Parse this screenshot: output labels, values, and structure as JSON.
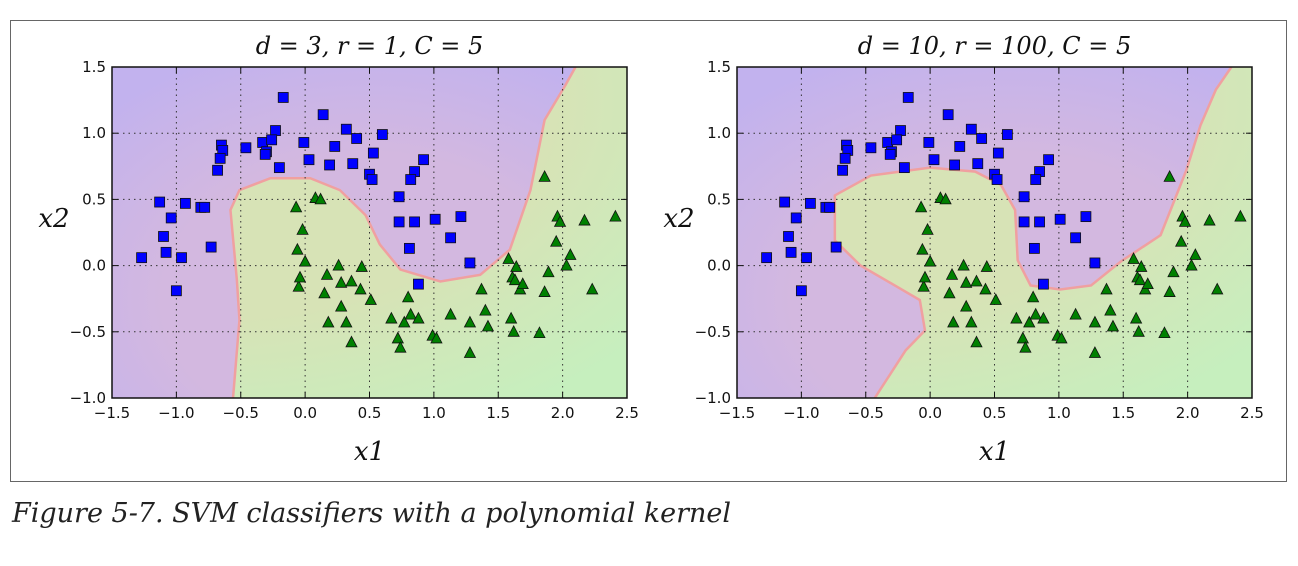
{
  "caption": "Figure 5-7. SVM classifiers with a polynomial kernel",
  "colors": {
    "square": "#0000ff",
    "triangle": "#008000",
    "purple_region": "#d3b8e0",
    "purple_outer": "#c2b2ee",
    "green_region": "#d7e3b6",
    "green_outer": "#c6efbe",
    "boundary": "#f0a0a0"
  },
  "chart_data": [
    {
      "type": "scatter",
      "title": "d = 3, r = 1, C = 5",
      "xlabel": "x1",
      "ylabel": "x2",
      "xlim": [
        -1.5,
        2.5
      ],
      "ylim": [
        -1.0,
        1.5
      ],
      "xticks": [
        "-1.5",
        "-1.0",
        "-0.5",
        "0.0",
        "0.5",
        "1.0",
        "1.5",
        "2.0",
        "2.5"
      ],
      "yticks": [
        "-1.0",
        "-0.5",
        "0.0",
        "0.5",
        "1.0",
        "1.5"
      ],
      "grid": true,
      "decision_boundary": [
        [
          -0.56,
          -1.0
        ],
        [
          -0.51,
          -0.41
        ],
        [
          -0.53,
          -0.11
        ],
        [
          -0.58,
          0.42
        ],
        [
          -0.51,
          0.57
        ],
        [
          -0.27,
          0.66
        ],
        [
          0.04,
          0.66
        ],
        [
          0.27,
          0.57
        ],
        [
          0.47,
          0.38
        ],
        [
          0.58,
          0.16
        ],
        [
          0.74,
          -0.03
        ],
        [
          1.05,
          -0.12
        ],
        [
          1.36,
          -0.07
        ],
        [
          1.59,
          0.12
        ],
        [
          1.75,
          0.57
        ],
        [
          1.86,
          1.1
        ],
        [
          2.02,
          1.36
        ],
        [
          2.1,
          1.5
        ]
      ]
    },
    {
      "type": "scatter",
      "title": "d = 10, r = 100, C = 5",
      "xlabel": "x1",
      "ylabel": "x2",
      "xlim": [
        -1.5,
        2.5
      ],
      "ylim": [
        -1.0,
        1.5
      ],
      "xticks": [
        "-1.5",
        "-1.0",
        "-0.5",
        "0.0",
        "0.5",
        "1.0",
        "1.5",
        "2.0",
        "2.5"
      ],
      "yticks": [
        "-1.0",
        "-0.5",
        "0.0",
        "0.5",
        "1.0",
        "1.5"
      ],
      "grid": true,
      "decision_boundary": [
        [
          -0.43,
          -1.0
        ],
        [
          -0.19,
          -0.64
        ],
        [
          -0.04,
          -0.49
        ],
        [
          -0.08,
          -0.26
        ],
        [
          -0.54,
          0.0
        ],
        [
          -0.74,
          0.19
        ],
        [
          -0.74,
          0.53
        ],
        [
          -0.46,
          0.68
        ],
        [
          0.0,
          0.74
        ],
        [
          0.35,
          0.71
        ],
        [
          0.55,
          0.61
        ],
        [
          0.66,
          0.42
        ],
        [
          0.68,
          0.04
        ],
        [
          0.78,
          -0.15
        ],
        [
          1.01,
          -0.18
        ],
        [
          1.25,
          -0.15
        ],
        [
          1.48,
          0.03
        ],
        [
          1.79,
          0.23
        ],
        [
          1.99,
          0.72
        ],
        [
          2.1,
          1.06
        ],
        [
          2.22,
          1.33
        ],
        [
          2.34,
          1.5
        ]
      ]
    }
  ],
  "points": {
    "squares": [
      [
        -0.17,
        1.27
      ],
      [
        0.14,
        1.14
      ],
      [
        0.32,
        1.03
      ],
      [
        -0.23,
        1.02
      ],
      [
        -0.33,
        0.93
      ],
      [
        -0.26,
        0.95
      ],
      [
        0.4,
        0.96
      ],
      [
        -0.46,
        0.89
      ],
      [
        -0.65,
        0.91
      ],
      [
        -0.3,
        0.86
      ],
      [
        -0.01,
        0.93
      ],
      [
        0.23,
        0.9
      ],
      [
        0.6,
        0.99
      ],
      [
        0.53,
        0.85
      ],
      [
        -0.64,
        0.87
      ],
      [
        -0.66,
        0.81
      ],
      [
        -0.68,
        0.72
      ],
      [
        -0.31,
        0.84
      ],
      [
        -0.2,
        0.74
      ],
      [
        0.03,
        0.8
      ],
      [
        0.19,
        0.76
      ],
      [
        0.37,
        0.77
      ],
      [
        0.5,
        0.69
      ],
      [
        0.52,
        0.65
      ],
      [
        0.92,
        0.8
      ],
      [
        0.85,
        0.71
      ],
      [
        0.82,
        0.65
      ],
      [
        0.73,
        0.52
      ],
      [
        0.73,
        0.33
      ],
      [
        0.85,
        0.33
      ],
      [
        0.81,
        0.13
      ],
      [
        1.01,
        0.35
      ],
      [
        1.21,
        0.37
      ],
      [
        1.13,
        0.21
      ],
      [
        1.28,
        0.02
      ],
      [
        0.88,
        -0.14
      ],
      [
        -1.13,
        0.48
      ],
      [
        -0.93,
        0.47
      ],
      [
        -0.81,
        0.44
      ],
      [
        -0.78,
        0.44
      ],
      [
        -1.04,
        0.36
      ],
      [
        -1.1,
        0.22
      ],
      [
        -1.08,
        0.1
      ],
      [
        -0.96,
        0.06
      ],
      [
        -0.73,
        0.14
      ],
      [
        -1.27,
        0.06
      ],
      [
        -1.0,
        -0.19
      ]
    ],
    "triangles": [
      [
        1.86,
        0.67
      ],
      [
        -0.07,
        0.44
      ],
      [
        0.08,
        0.51
      ],
      [
        0.12,
        0.5
      ],
      [
        -0.02,
        0.27
      ],
      [
        -0.06,
        0.12
      ],
      [
        0.0,
        0.03
      ],
      [
        -0.05,
        -0.16
      ],
      [
        -0.04,
        -0.09
      ],
      [
        0.17,
        -0.07
      ],
      [
        0.26,
        0.0
      ],
      [
        0.44,
        -0.01
      ],
      [
        0.28,
        -0.13
      ],
      [
        0.36,
        -0.12
      ],
      [
        0.15,
        -0.21
      ],
      [
        0.28,
        -0.31
      ],
      [
        0.32,
        -0.43
      ],
      [
        0.18,
        -0.43
      ],
      [
        0.36,
        -0.58
      ],
      [
        0.43,
        -0.18
      ],
      [
        0.51,
        -0.26
      ],
      [
        0.67,
        -0.4
      ],
      [
        0.8,
        -0.24
      ],
      [
        0.77,
        -0.43
      ],
      [
        0.82,
        -0.37
      ],
      [
        0.72,
        -0.55
      ],
      [
        0.74,
        -0.62
      ],
      [
        0.88,
        -0.4
      ],
      [
        0.99,
        -0.53
      ],
      [
        1.02,
        -0.55
      ],
      [
        1.13,
        -0.37
      ],
      [
        1.28,
        -0.43
      ],
      [
        1.28,
        -0.66
      ],
      [
        1.4,
        -0.34
      ],
      [
        1.42,
        -0.46
      ],
      [
        1.37,
        -0.18
      ],
      [
        1.58,
        0.05
      ],
      [
        1.61,
        -0.09
      ],
      [
        1.63,
        -0.11
      ],
      [
        1.64,
        -0.01
      ],
      [
        1.67,
        -0.18
      ],
      [
        1.69,
        -0.14
      ],
      [
        1.89,
        -0.05
      ],
      [
        1.86,
        -0.2
      ],
      [
        1.62,
        -0.5
      ],
      [
        1.6,
        -0.4
      ],
      [
        1.82,
        -0.51
      ],
      [
        1.95,
        0.18
      ],
      [
        1.96,
        0.37
      ],
      [
        1.98,
        0.33
      ],
      [
        2.03,
        0.0
      ],
      [
        2.06,
        0.08
      ],
      [
        2.17,
        0.34
      ],
      [
        2.23,
        -0.18
      ],
      [
        2.41,
        0.37
      ]
    ]
  }
}
